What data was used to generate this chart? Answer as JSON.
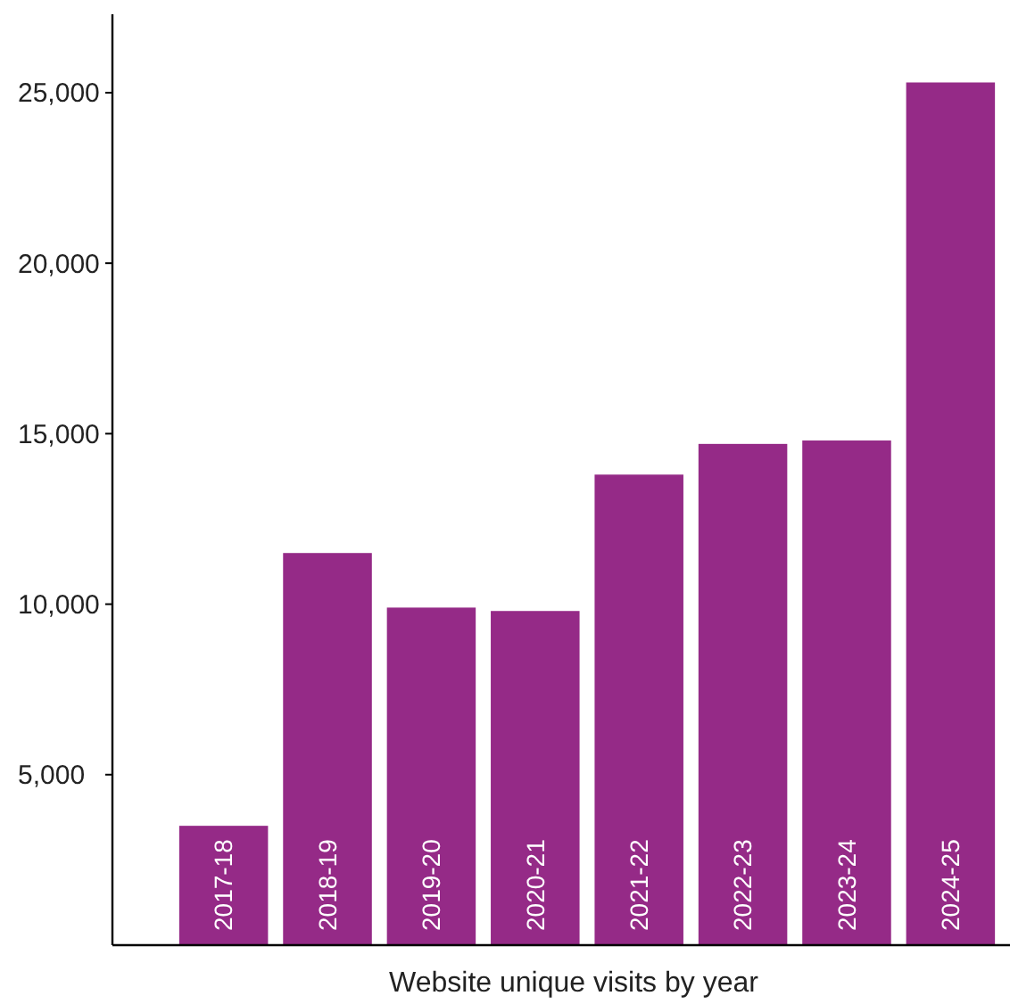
{
  "chart_data": {
    "type": "bar",
    "xlabel": "Website unique visits by year",
    "categories": [
      "2017-18",
      "2018-19",
      "2019-20",
      "2020-21",
      "2021-22",
      "2022-23",
      "2023-24",
      "2024-25"
    ],
    "values": [
      3500,
      11500,
      9900,
      9800,
      13800,
      14700,
      14800,
      25300
    ],
    "color": "#952a87",
    "ylim": [
      0,
      27300
    ],
    "yticks": [
      {
        "value": 5000,
        "label": "5,000"
      },
      {
        "value": 10000,
        "label": "10,000"
      },
      {
        "value": 15000,
        "label": "15,000"
      },
      {
        "value": 20000,
        "label": "20,000"
      },
      {
        "value": 25000,
        "label": "25,000"
      }
    ],
    "grid": false
  }
}
